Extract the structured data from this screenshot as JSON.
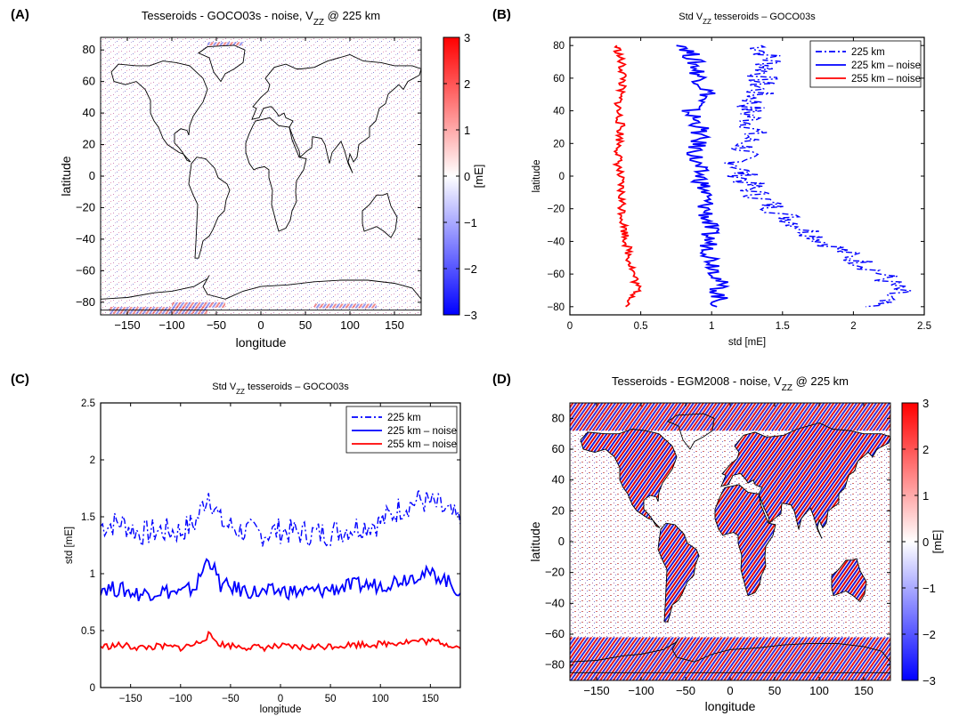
{
  "panels": {
    "a": {
      "label": "(A)"
    },
    "b": {
      "label": "(B)"
    },
    "c": {
      "label": "(C)"
    },
    "d": {
      "label": "(D)"
    }
  },
  "chart_data": [
    {
      "id": "a",
      "type": "heatmap",
      "title": "Tesseroids - GOCO03s - noise, V",
      "title_sub": "ZZ",
      "title_tail": " @ 225 km",
      "xlabel": "longitude",
      "ylabel": "latitude",
      "xlim": [
        -180,
        180
      ],
      "ylim": [
        -88,
        88
      ],
      "xticks": [
        -150,
        -100,
        -50,
        0,
        50,
        100,
        150
      ],
      "yticks": [
        -80,
        -60,
        -40,
        -20,
        0,
        20,
        40,
        60,
        80
      ],
      "colorbar": {
        "label": "[mE]",
        "range": [
          -3,
          3
        ],
        "ticks": [
          -3,
          -2,
          -1,
          0,
          1,
          2,
          3
        ],
        "colors": [
          "#0000ff",
          "#ffffff",
          "#ff0000"
        ]
      },
      "pattern": "low-amplitude random noise everywhere, stronger near poles"
    },
    {
      "id": "b",
      "type": "line",
      "title": "Std V",
      "title_sub": "ZZ",
      "title_tail": " tesseroids – GOCO03s",
      "xlabel": "std [mE]",
      "ylabel": "latitude",
      "xlim": [
        0,
        2.5
      ],
      "ylim": [
        -85,
        85
      ],
      "xticks": [
        0,
        0.5,
        1,
        1.5,
        2,
        2.5
      ],
      "yticks": [
        -80,
        -60,
        -40,
        -20,
        0,
        20,
        40,
        60,
        80
      ],
      "legend": {
        "position": "top-right"
      },
      "y": [
        80,
        70,
        60,
        50,
        40,
        30,
        20,
        10,
        0,
        -10,
        -20,
        -30,
        -40,
        -50,
        -60,
        -70,
        -80
      ],
      "series": [
        {
          "name": "225 km",
          "color": "#0000ff",
          "style": "dashdot",
          "values": [
            1.35,
            1.42,
            1.35,
            1.32,
            1.26,
            1.3,
            1.24,
            1.2,
            1.22,
            1.3,
            1.45,
            1.62,
            1.8,
            2.0,
            2.2,
            2.3,
            2.1
          ]
        },
        {
          "name": "225 km – noise",
          "color": "#0000ff",
          "style": "solid",
          "values": [
            0.82,
            0.88,
            0.92,
            0.98,
            0.84,
            0.92,
            0.9,
            0.88,
            0.92,
            0.95,
            0.96,
            0.98,
            0.98,
            1.0,
            1.05,
            1.05,
            1.05
          ]
        },
        {
          "name": "255 km – noise",
          "color": "#ff0000",
          "style": "solid",
          "values": [
            0.33,
            0.36,
            0.38,
            0.35,
            0.34,
            0.36,
            0.35,
            0.34,
            0.35,
            0.36,
            0.37,
            0.38,
            0.4,
            0.42,
            0.45,
            0.48,
            0.4
          ]
        }
      ]
    },
    {
      "id": "c",
      "type": "line",
      "title": "Std V",
      "title_sub": "ZZ",
      "title_tail": " tesseroids – GOCO03s",
      "xlabel": "longitude",
      "ylabel": "std [mE]",
      "xlim": [
        -180,
        180
      ],
      "ylim": [
        0,
        2.5
      ],
      "xticks": [
        -150,
        -100,
        -50,
        0,
        50,
        100,
        150
      ],
      "yticks": [
        0,
        0.5,
        1,
        1.5,
        2,
        2.5
      ],
      "legend": {
        "position": "top-right"
      },
      "x": [
        -180,
        -160,
        -140,
        -120,
        -100,
        -85,
        -72,
        -60,
        -40,
        -20,
        0,
        20,
        40,
        60,
        80,
        100,
        120,
        140,
        160,
        180
      ],
      "series": [
        {
          "name": "225 km",
          "color": "#0000ff",
          "style": "dashdot",
          "values": [
            1.42,
            1.45,
            1.35,
            1.38,
            1.37,
            1.45,
            1.72,
            1.45,
            1.38,
            1.35,
            1.38,
            1.36,
            1.35,
            1.38,
            1.42,
            1.45,
            1.58,
            1.65,
            1.58,
            1.45
          ]
        },
        {
          "name": "225 km – noise",
          "color": "#0000ff",
          "style": "solid",
          "values": [
            0.88,
            0.86,
            0.82,
            0.85,
            0.83,
            0.88,
            1.15,
            0.9,
            0.86,
            0.83,
            0.85,
            0.84,
            0.85,
            0.88,
            0.9,
            0.9,
            0.95,
            1.0,
            0.98,
            0.84
          ]
        },
        {
          "name": "255 km – noise",
          "color": "#ff0000",
          "style": "solid",
          "values": [
            0.36,
            0.37,
            0.35,
            0.36,
            0.35,
            0.38,
            0.46,
            0.38,
            0.36,
            0.35,
            0.36,
            0.35,
            0.36,
            0.37,
            0.38,
            0.38,
            0.4,
            0.41,
            0.4,
            0.35
          ]
        }
      ]
    },
    {
      "id": "d",
      "type": "heatmap",
      "title": "Tesseroids - EGM2008 - noise, V",
      "title_sub": "ZZ",
      "title_tail": " @ 225 km",
      "xlabel": "longitude",
      "ylabel": "latitude",
      "xlim": [
        -180,
        180
      ],
      "ylim": [
        -90,
        90
      ],
      "xticks": [
        -150,
        -100,
        -50,
        0,
        50,
        100,
        150
      ],
      "yticks": [
        -80,
        -60,
        -40,
        -20,
        0,
        20,
        40,
        60,
        80
      ],
      "colorbar": {
        "label": "[mE]",
        "range": [
          -3,
          3
        ],
        "ticks": [
          -3,
          -2,
          -1,
          0,
          1,
          2,
          3
        ],
        "colors": [
          "#0000ff",
          "#ffffff",
          "#ff0000"
        ]
      },
      "pattern": "strong oscillating stripes over continents and polar regions"
    }
  ]
}
